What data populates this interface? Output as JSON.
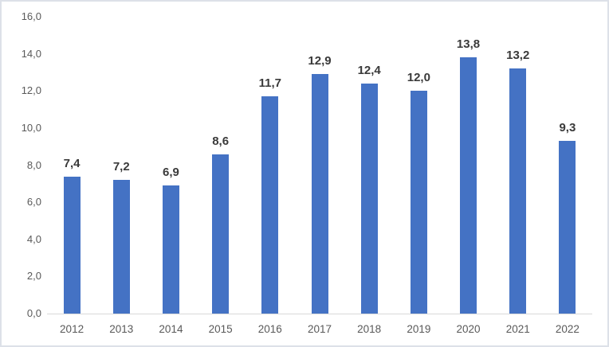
{
  "chart_data": {
    "type": "bar",
    "title": "",
    "xlabel": "",
    "ylabel": "",
    "categories": [
      "2012",
      "2013",
      "2014",
      "2015",
      "2016",
      "2017",
      "2018",
      "2019",
      "2020",
      "2021",
      "2022"
    ],
    "values": [
      7.4,
      7.2,
      6.9,
      8.6,
      11.7,
      12.9,
      12.4,
      12.0,
      13.8,
      13.2,
      9.3
    ],
    "value_labels": [
      "7,4",
      "7,2",
      "6,9",
      "8,6",
      "11,7",
      "12,9",
      "12,4",
      "12,0",
      "13,8",
      "13,2",
      "9,3"
    ],
    "ylim": [
      0,
      16
    ],
    "y_ticks": [
      0,
      2,
      4,
      6,
      8,
      10,
      12,
      14,
      16
    ],
    "y_tick_labels": [
      "0,0",
      "2,0",
      "4,0",
      "6,0",
      "8,0",
      "10,0",
      "12,0",
      "14,0",
      "16,0"
    ],
    "decimal_separator": ",",
    "grid": "off",
    "legend": "none",
    "data_labels": "above-bars",
    "colors": {
      "bar": "#4472C4",
      "axis_line": "#d9d9d9",
      "tick_label": "#595959",
      "data_label": "#3a3a3a",
      "frame_border": "#dde1e8",
      "background": "#ffffff"
    }
  }
}
